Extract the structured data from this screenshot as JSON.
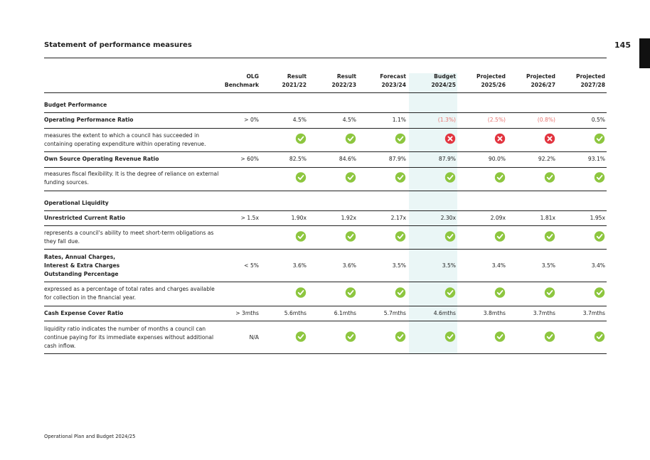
{
  "header": {
    "title": "Statement of performance measures",
    "page_number": "145"
  },
  "table": {
    "columns": [
      [
        "OLG",
        "Benchmark"
      ],
      [
        "Result",
        "2021/22"
      ],
      [
        "Result",
        "2022/23"
      ],
      [
        "Forecast",
        "2023/24"
      ],
      [
        "Budget",
        "2024/25"
      ],
      [
        "Projected",
        "2025/26"
      ],
      [
        "Projected",
        "2026/27"
      ],
      [
        "Projected",
        "2027/28"
      ]
    ],
    "rows": [
      {
        "section": "Budget Performance"
      },
      {
        "label": [
          "Operating Performance Ratio"
        ],
        "values": [
          "> 0%",
          "4.5%",
          "4.5%",
          "1.1%",
          "(1.3%)",
          "(2.5%)",
          "(0.8%)",
          "0.5%"
        ]
      },
      {
        "description": [
          "measures the extent to which a council has succeeded in",
          "containing operating expenditure within operating revenue."
        ]
      },
      {
        "label": [
          "Own Source Operating Revenue Ratio"
        ],
        "values": [
          "> 60%",
          "82.5%",
          "84.6%",
          "87.9%",
          "87.9%",
          "90.0%",
          "92.2%",
          "93.1%"
        ]
      },
      {
        "description": [
          "measures fiscal flexibility. It is the degree of reliance on external",
          "funding sources."
        ]
      },
      {
        "section": "Operational Liquidity"
      },
      {
        "label": [
          "Unrestricted Current Ratio"
        ],
        "values": [
          "> 1.5x",
          "1.90x",
          "1.92x",
          "2.17x",
          "2.30x",
          "2.09x",
          "1.81x",
          "1.95x"
        ]
      },
      {
        "description": [
          "represents a council's ability to meet short-term obligations as",
          "they fall due."
        ]
      },
      {
        "label": [
          "Rates, Annual Charges,",
          "Interest & Extra Charges",
          "Outstanding Percentage"
        ],
        "values": [
          "< 5%",
          "3.6%",
          "3.6%",
          "3.5%",
          "3.5%",
          "3.4%",
          "3.5%",
          "3.4%"
        ]
      },
      {
        "description": [
          "expressed as a percentage of total rates and charges available",
          "for collection in the financial year."
        ]
      },
      {
        "label": [
          "Cash Expense Cover Ratio"
        ],
        "values": [
          "> 3mths",
          "5.6mths",
          "6.1mths",
          "5.7mths",
          "4.6mths",
          "3.8mths",
          "3.7mths",
          "3.7mths"
        ]
      },
      {
        "description": [
          "liquidity ratio indicates the number of months a council can",
          "continue paying for its immediate expenses without additional",
          "cash inflow."
        ],
        "benchmark": "N/A"
      }
    ]
  },
  "footer": "Operational Plan and Budget 2024/25"
}
